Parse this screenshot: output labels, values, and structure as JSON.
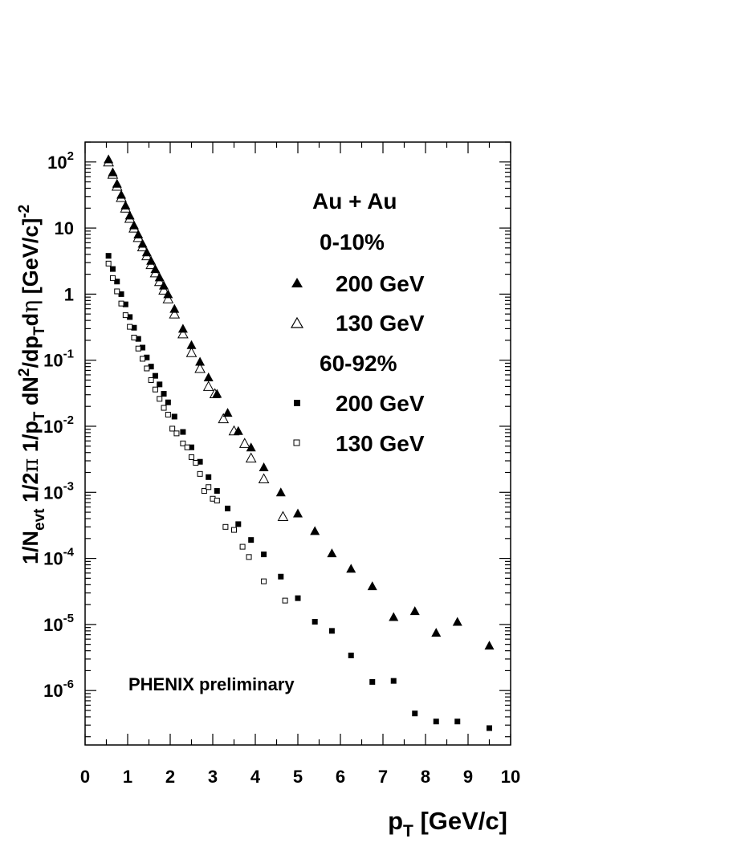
{
  "chart_data": {
    "type": "scatter",
    "title": "",
    "xlabel": "p",
    "xlabel_sub": "T",
    "xlabel_unit": " [GeV/c]",
    "ylabel": "1/N_evt 1/2π 1/p_T dN²/dp_T dη [GeV/c]⁻²",
    "ylabel_parts": {
      "a": "1/N",
      "a_sub": "evt",
      "b": " 1/2",
      "pi": "π",
      "c": " 1/p",
      "c_sub": "T",
      "d": " dN",
      "d_sup": "2",
      "e": "/dp",
      "e_sub": "T",
      "f": "d",
      "eta": "η",
      "g": " [GeV/c]",
      "g_sup": "-2"
    },
    "xlim": [
      0,
      10
    ],
    "ylim": [
      1.5e-07,
      200
    ],
    "y_scale": "log",
    "grid": false,
    "x_ticks": [
      "0",
      "1",
      "2",
      "3",
      "4",
      "5",
      "6",
      "7",
      "8",
      "9",
      "10"
    ],
    "y_ticks": [
      {
        "mantissa": "10",
        "exponent": "-6",
        "value": 1e-06
      },
      {
        "mantissa": "10",
        "exponent": "-5",
        "value": 1e-05
      },
      {
        "mantissa": "10",
        "exponent": "-4",
        "value": 0.0001
      },
      {
        "mantissa": "10",
        "exponent": "-3",
        "value": 0.001
      },
      {
        "mantissa": "10",
        "exponent": "-2",
        "value": 0.01
      },
      {
        "mantissa": "10",
        "exponent": "-1",
        "value": 0.1
      },
      {
        "mantissa": "1",
        "exponent": "",
        "value": 1
      },
      {
        "mantissa": "10",
        "exponent": "",
        "value": 10
      },
      {
        "mantissa": "10",
        "exponent": "2",
        "value": 100
      }
    ],
    "annotation": "PHENIX preliminary",
    "legend": {
      "position": "top-right",
      "title": "Au + Au",
      "groups": [
        {
          "label": "0-10%",
          "entries": [
            {
              "label": "200 GeV",
              "marker": "triangle-filled"
            },
            {
              "label": "130 GeV",
              "marker": "triangle-open"
            }
          ]
        },
        {
          "label": "60-92%",
          "entries": [
            {
              "label": "200 GeV",
              "marker": "square-filled"
            },
            {
              "label": "130 GeV",
              "marker": "square-open"
            }
          ]
        }
      ]
    },
    "series": [
      {
        "name": "0-10% 200 GeV",
        "marker": "triangle-filled",
        "points": [
          [
            0.55,
            110
          ],
          [
            0.65,
            70
          ],
          [
            0.75,
            47
          ],
          [
            0.85,
            32
          ],
          [
            0.95,
            22
          ],
          [
            1.05,
            15.5
          ],
          [
            1.15,
            11
          ],
          [
            1.25,
            8
          ],
          [
            1.35,
            5.8
          ],
          [
            1.45,
            4.3
          ],
          [
            1.55,
            3.2
          ],
          [
            1.65,
            2.4
          ],
          [
            1.75,
            1.8
          ],
          [
            1.85,
            1.35
          ],
          [
            1.95,
            1.0
          ],
          [
            2.1,
            0.6
          ],
          [
            2.3,
            0.3
          ],
          [
            2.5,
            0.17
          ],
          [
            2.7,
            0.095
          ],
          [
            2.9,
            0.055
          ],
          [
            3.1,
            0.031
          ],
          [
            3.35,
            0.016
          ],
          [
            3.6,
            0.0085
          ],
          [
            3.9,
            0.0048
          ],
          [
            4.2,
            0.0024
          ],
          [
            4.6,
            0.001
          ],
          [
            5.0,
            0.00048
          ],
          [
            5.4,
            0.00026
          ],
          [
            5.8,
            0.00012
          ],
          [
            6.25,
            7e-05
          ],
          [
            6.75,
            3.8e-05
          ],
          [
            7.25,
            1.3e-05
          ],
          [
            7.75,
            1.6e-05
          ],
          [
            8.25,
            7.5e-06
          ],
          [
            8.75,
            1.1e-05
          ],
          [
            9.5,
            4.8e-06
          ]
        ]
      },
      {
        "name": "0-10% 130 GeV",
        "marker": "triangle-open",
        "points": [
          [
            0.55,
            100
          ],
          [
            0.65,
            65
          ],
          [
            0.75,
            43
          ],
          [
            0.85,
            29
          ],
          [
            0.95,
            20
          ],
          [
            1.05,
            14
          ],
          [
            1.15,
            10
          ],
          [
            1.25,
            7.2
          ],
          [
            1.35,
            5.2
          ],
          [
            1.45,
            3.8
          ],
          [
            1.55,
            2.8
          ],
          [
            1.65,
            2.1
          ],
          [
            1.75,
            1.55
          ],
          [
            1.85,
            1.15
          ],
          [
            1.95,
            0.85
          ],
          [
            2.1,
            0.5
          ],
          [
            2.3,
            0.25
          ],
          [
            2.5,
            0.13
          ],
          [
            2.7,
            0.075
          ],
          [
            2.9,
            0.04
          ],
          [
            3.05,
            0.031
          ],
          [
            3.25,
            0.013
          ],
          [
            3.5,
            0.0085
          ],
          [
            3.75,
            0.0055
          ],
          [
            3.9,
            0.0033
          ],
          [
            4.2,
            0.0016
          ],
          [
            4.65,
            0.00043
          ]
        ]
      },
      {
        "name": "60-92% 200 GeV",
        "marker": "square-filled",
        "points": [
          [
            0.55,
            3.8
          ],
          [
            0.65,
            2.4
          ],
          [
            0.75,
            1.55
          ],
          [
            0.85,
            1.0
          ],
          [
            0.95,
            0.7
          ],
          [
            1.05,
            0.45
          ],
          [
            1.15,
            0.31
          ],
          [
            1.25,
            0.21
          ],
          [
            1.35,
            0.155
          ],
          [
            1.45,
            0.11
          ],
          [
            1.55,
            0.08
          ],
          [
            1.65,
            0.058
          ],
          [
            1.75,
            0.043
          ],
          [
            1.85,
            0.031
          ],
          [
            1.95,
            0.023
          ],
          [
            2.1,
            0.014
          ],
          [
            2.3,
            0.0082
          ],
          [
            2.5,
            0.0048
          ],
          [
            2.7,
            0.0029
          ],
          [
            2.9,
            0.0017
          ],
          [
            3.1,
            0.00105
          ],
          [
            3.35,
            0.00057
          ],
          [
            3.6,
            0.00033
          ],
          [
            3.9,
            0.00019
          ],
          [
            4.2,
            0.000115
          ],
          [
            4.6,
            5.3e-05
          ],
          [
            5.0,
            2.5e-05
          ],
          [
            5.4,
            1.1e-05
          ],
          [
            5.8,
            8e-06
          ],
          [
            6.25,
            3.4e-06
          ],
          [
            6.75,
            1.35e-06
          ],
          [
            7.25,
            1.4e-06
          ],
          [
            7.75,
            4.5e-07
          ],
          [
            8.25,
            3.4e-07
          ],
          [
            8.75,
            3.4e-07
          ],
          [
            9.5,
            2.7e-07
          ]
        ]
      },
      {
        "name": "60-92% 130 GeV",
        "marker": "square-open",
        "points": [
          [
            0.55,
            2.9
          ],
          [
            0.65,
            1.75
          ],
          [
            0.75,
            1.1
          ],
          [
            0.85,
            0.72
          ],
          [
            0.95,
            0.48
          ],
          [
            1.05,
            0.32
          ],
          [
            1.15,
            0.22
          ],
          [
            1.25,
            0.15
          ],
          [
            1.35,
            0.105
          ],
          [
            1.45,
            0.075
          ],
          [
            1.55,
            0.05
          ],
          [
            1.65,
            0.036
          ],
          [
            1.75,
            0.026
          ],
          [
            1.85,
            0.019
          ],
          [
            1.95,
            0.015
          ],
          [
            2.05,
            0.0092
          ],
          [
            2.15,
            0.0078
          ],
          [
            2.3,
            0.0055
          ],
          [
            2.4,
            0.0048
          ],
          [
            2.5,
            0.0034
          ],
          [
            2.6,
            0.0028
          ],
          [
            2.7,
            0.0019
          ],
          [
            2.8,
            0.00105
          ],
          [
            2.9,
            0.0012
          ],
          [
            3.0,
            0.0008
          ],
          [
            3.1,
            0.00075
          ],
          [
            3.3,
            0.0003
          ],
          [
            3.5,
            0.00027
          ],
          [
            3.7,
            0.00015
          ],
          [
            3.85,
            0.000105
          ],
          [
            4.2,
            4.5e-05
          ],
          [
            4.7,
            2.3e-05
          ]
        ]
      }
    ]
  }
}
